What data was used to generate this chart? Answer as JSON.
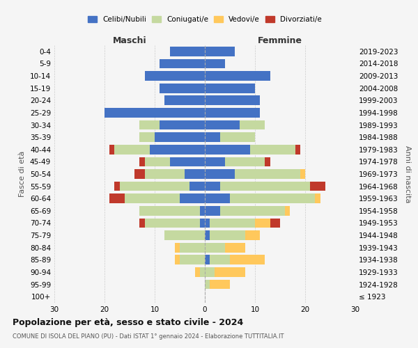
{
  "age_groups": [
    "0-4",
    "5-9",
    "10-14",
    "15-19",
    "20-24",
    "25-29",
    "30-34",
    "35-39",
    "40-44",
    "45-49",
    "50-54",
    "55-59",
    "60-64",
    "65-69",
    "70-74",
    "75-79",
    "80-84",
    "85-89",
    "90-94",
    "95-99",
    "100+"
  ],
  "birth_years": [
    "2019-2023",
    "2014-2018",
    "2009-2013",
    "2004-2008",
    "1999-2003",
    "1994-1998",
    "1989-1993",
    "1984-1988",
    "1979-1983",
    "1974-1978",
    "1969-1973",
    "1964-1968",
    "1959-1963",
    "1954-1958",
    "1949-1953",
    "1944-1948",
    "1939-1943",
    "1934-1938",
    "1929-1933",
    "1924-1928",
    "≤ 1923"
  ],
  "males": {
    "celibi": [
      7,
      9,
      12,
      9,
      8,
      20,
      9,
      10,
      11,
      7,
      4,
      3,
      5,
      1,
      1,
      0,
      0,
      0,
      0,
      0,
      0
    ],
    "coniugati": [
      0,
      0,
      0,
      0,
      0,
      0,
      4,
      3,
      7,
      5,
      8,
      14,
      11,
      12,
      11,
      8,
      5,
      5,
      1,
      0,
      0
    ],
    "vedovi": [
      0,
      0,
      0,
      0,
      0,
      0,
      0,
      0,
      0,
      0,
      0,
      0,
      0,
      0,
      0,
      0,
      1,
      1,
      1,
      0,
      0
    ],
    "divorziati": [
      0,
      0,
      0,
      0,
      0,
      0,
      0,
      0,
      1,
      1,
      2,
      1,
      3,
      0,
      1,
      0,
      0,
      0,
      0,
      0,
      0
    ]
  },
  "females": {
    "nubili": [
      6,
      4,
      13,
      10,
      11,
      11,
      7,
      3,
      9,
      4,
      6,
      3,
      5,
      3,
      1,
      1,
      0,
      1,
      0,
      0,
      0
    ],
    "coniugate": [
      0,
      0,
      0,
      0,
      0,
      0,
      5,
      7,
      9,
      8,
      13,
      18,
      17,
      13,
      9,
      7,
      4,
      4,
      2,
      1,
      0
    ],
    "vedove": [
      0,
      0,
      0,
      0,
      0,
      0,
      0,
      0,
      0,
      0,
      1,
      0,
      1,
      1,
      3,
      3,
      4,
      7,
      6,
      4,
      0
    ],
    "divorziate": [
      0,
      0,
      0,
      0,
      0,
      0,
      0,
      0,
      1,
      1,
      0,
      3,
      0,
      0,
      2,
      0,
      0,
      0,
      0,
      0,
      0
    ]
  },
  "colors": {
    "celibi": "#4472c4",
    "coniugati": "#c5d9a0",
    "vedovi": "#ffc85c",
    "divorziati": "#c0392b"
  },
  "title": "Popolazione per età, sesso e stato civile - 2024",
  "subtitle": "COMUNE DI ISOLA DEL PIANO (PU) - Dati ISTAT 1° gennaio 2024 - Elaborazione TUTTITALIA.IT",
  "xlabel_left": "Maschi",
  "xlabel_right": "Femmine",
  "ylabel_left": "Fasce di età",
  "ylabel_right": "Anni di nascita",
  "xlim": 30,
  "bg_color": "#f5f5f5",
  "grid_color": "#cccccc"
}
